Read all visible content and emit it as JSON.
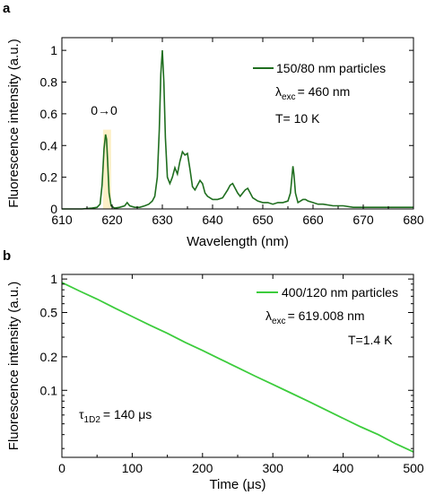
{
  "chart_data": [
    {
      "panel": "a",
      "type": "line",
      "xlabel": "Wavelength (nm)",
      "ylabel": "Fluorescence intensity (a.u.)",
      "xlim": [
        610,
        680
      ],
      "ylim": [
        0,
        1.08
      ],
      "xticks": [
        610,
        620,
        630,
        640,
        650,
        660,
        670,
        680
      ],
      "yticks": [
        0,
        0.2,
        0.4,
        0.6,
        0.8,
        1
      ],
      "grid": false,
      "legend_position": "top-right",
      "series": [
        {
          "name": "150/80 nm particles",
          "color": "#1f6e1f",
          "x": [
            610,
            612,
            614,
            616,
            617,
            617.6,
            618,
            618.4,
            618.7,
            618.9,
            619.1,
            619.4,
            619.8,
            620.5,
            621.5,
            622.5,
            623,
            623.5,
            624.5,
            625.5,
            626.5,
            627.3,
            628,
            628.5,
            629,
            629.4,
            629.7,
            630,
            630.3,
            630.6,
            631,
            631.5,
            632,
            632.5,
            633,
            633.5,
            634,
            634.5,
            635,
            635.5,
            636,
            636.5,
            637,
            637.5,
            638,
            638.5,
            639,
            640,
            641,
            642,
            643,
            643.5,
            644,
            644.5,
            645,
            645.5,
            646,
            646.5,
            647,
            647.5,
            648,
            649,
            650,
            651,
            652,
            653,
            654,
            655,
            655.5,
            655.8,
            656,
            656.2,
            656.5,
            657,
            657.5,
            658,
            658.5,
            659,
            660,
            661,
            662,
            664,
            666,
            668,
            670,
            672,
            674,
            676,
            678,
            680
          ],
          "y": [
            0.0,
            0.0,
            0.0,
            0.005,
            0.01,
            0.03,
            0.15,
            0.38,
            0.47,
            0.44,
            0.3,
            0.1,
            0.02,
            0.005,
            0.01,
            0.02,
            0.04,
            0.02,
            0.01,
            0.01,
            0.02,
            0.03,
            0.05,
            0.08,
            0.2,
            0.5,
            0.85,
            1.0,
            0.8,
            0.45,
            0.2,
            0.16,
            0.2,
            0.26,
            0.22,
            0.3,
            0.36,
            0.34,
            0.35,
            0.25,
            0.14,
            0.12,
            0.15,
            0.18,
            0.16,
            0.1,
            0.08,
            0.06,
            0.06,
            0.07,
            0.12,
            0.15,
            0.16,
            0.13,
            0.1,
            0.08,
            0.1,
            0.12,
            0.13,
            0.1,
            0.07,
            0.05,
            0.04,
            0.04,
            0.03,
            0.04,
            0.04,
            0.05,
            0.1,
            0.2,
            0.27,
            0.22,
            0.1,
            0.04,
            0.05,
            0.06,
            0.06,
            0.05,
            0.04,
            0.03,
            0.03,
            0.02,
            0.02,
            0.01,
            0.01,
            0.01,
            0.01,
            0.01,
            0.01,
            0.01
          ]
        }
      ],
      "annotations": {
        "peak_label": "0→0",
        "peak_x": 619,
        "highlight_range": [
          618.2,
          619.8
        ],
        "excitation": {
          "symbol": "λ",
          "sub": "exc",
          "value": "= 460 nm"
        },
        "temperature": "T= 10 K"
      }
    },
    {
      "panel": "b",
      "type": "line",
      "xlabel": "Time (μs)",
      "ylabel": "Fluorescence intensity (a.u.)",
      "yscale": "log",
      "xlim": [
        0,
        500
      ],
      "ylim": [
        0.025,
        1.1
      ],
      "xticks": [
        0,
        100,
        200,
        300,
        400,
        500
      ],
      "yticks": [
        1,
        0.5,
        0.2,
        0.1
      ],
      "ytick_labels": [
        "1",
        "0.5",
        "0.2",
        "0.1"
      ],
      "grid": false,
      "legend_position": "top-right",
      "series": [
        {
          "name": "400/120 nm particles",
          "color": "#3ccc3c",
          "x": [
            0,
            25,
            50,
            75,
            100,
            125,
            150,
            175,
            200,
            225,
            250,
            275,
            300,
            325,
            350,
            375,
            400,
            425,
            450,
            475,
            500
          ],
          "y": [
            0.93,
            0.78,
            0.66,
            0.55,
            0.46,
            0.385,
            0.325,
            0.27,
            0.228,
            0.191,
            0.16,
            0.134,
            0.113,
            0.095,
            0.08,
            0.067,
            0.056,
            0.047,
            0.04,
            0.033,
            0.028
          ]
        }
      ],
      "annotations": {
        "excitation": {
          "symbol": "λ",
          "sub": "exc",
          "value": "= 619.008 nm"
        },
        "temperature": "T=1.4 K",
        "lifetime": {
          "symbol": "τ",
          "sub": "1D2",
          "value": "= 140 μs"
        }
      }
    }
  ]
}
